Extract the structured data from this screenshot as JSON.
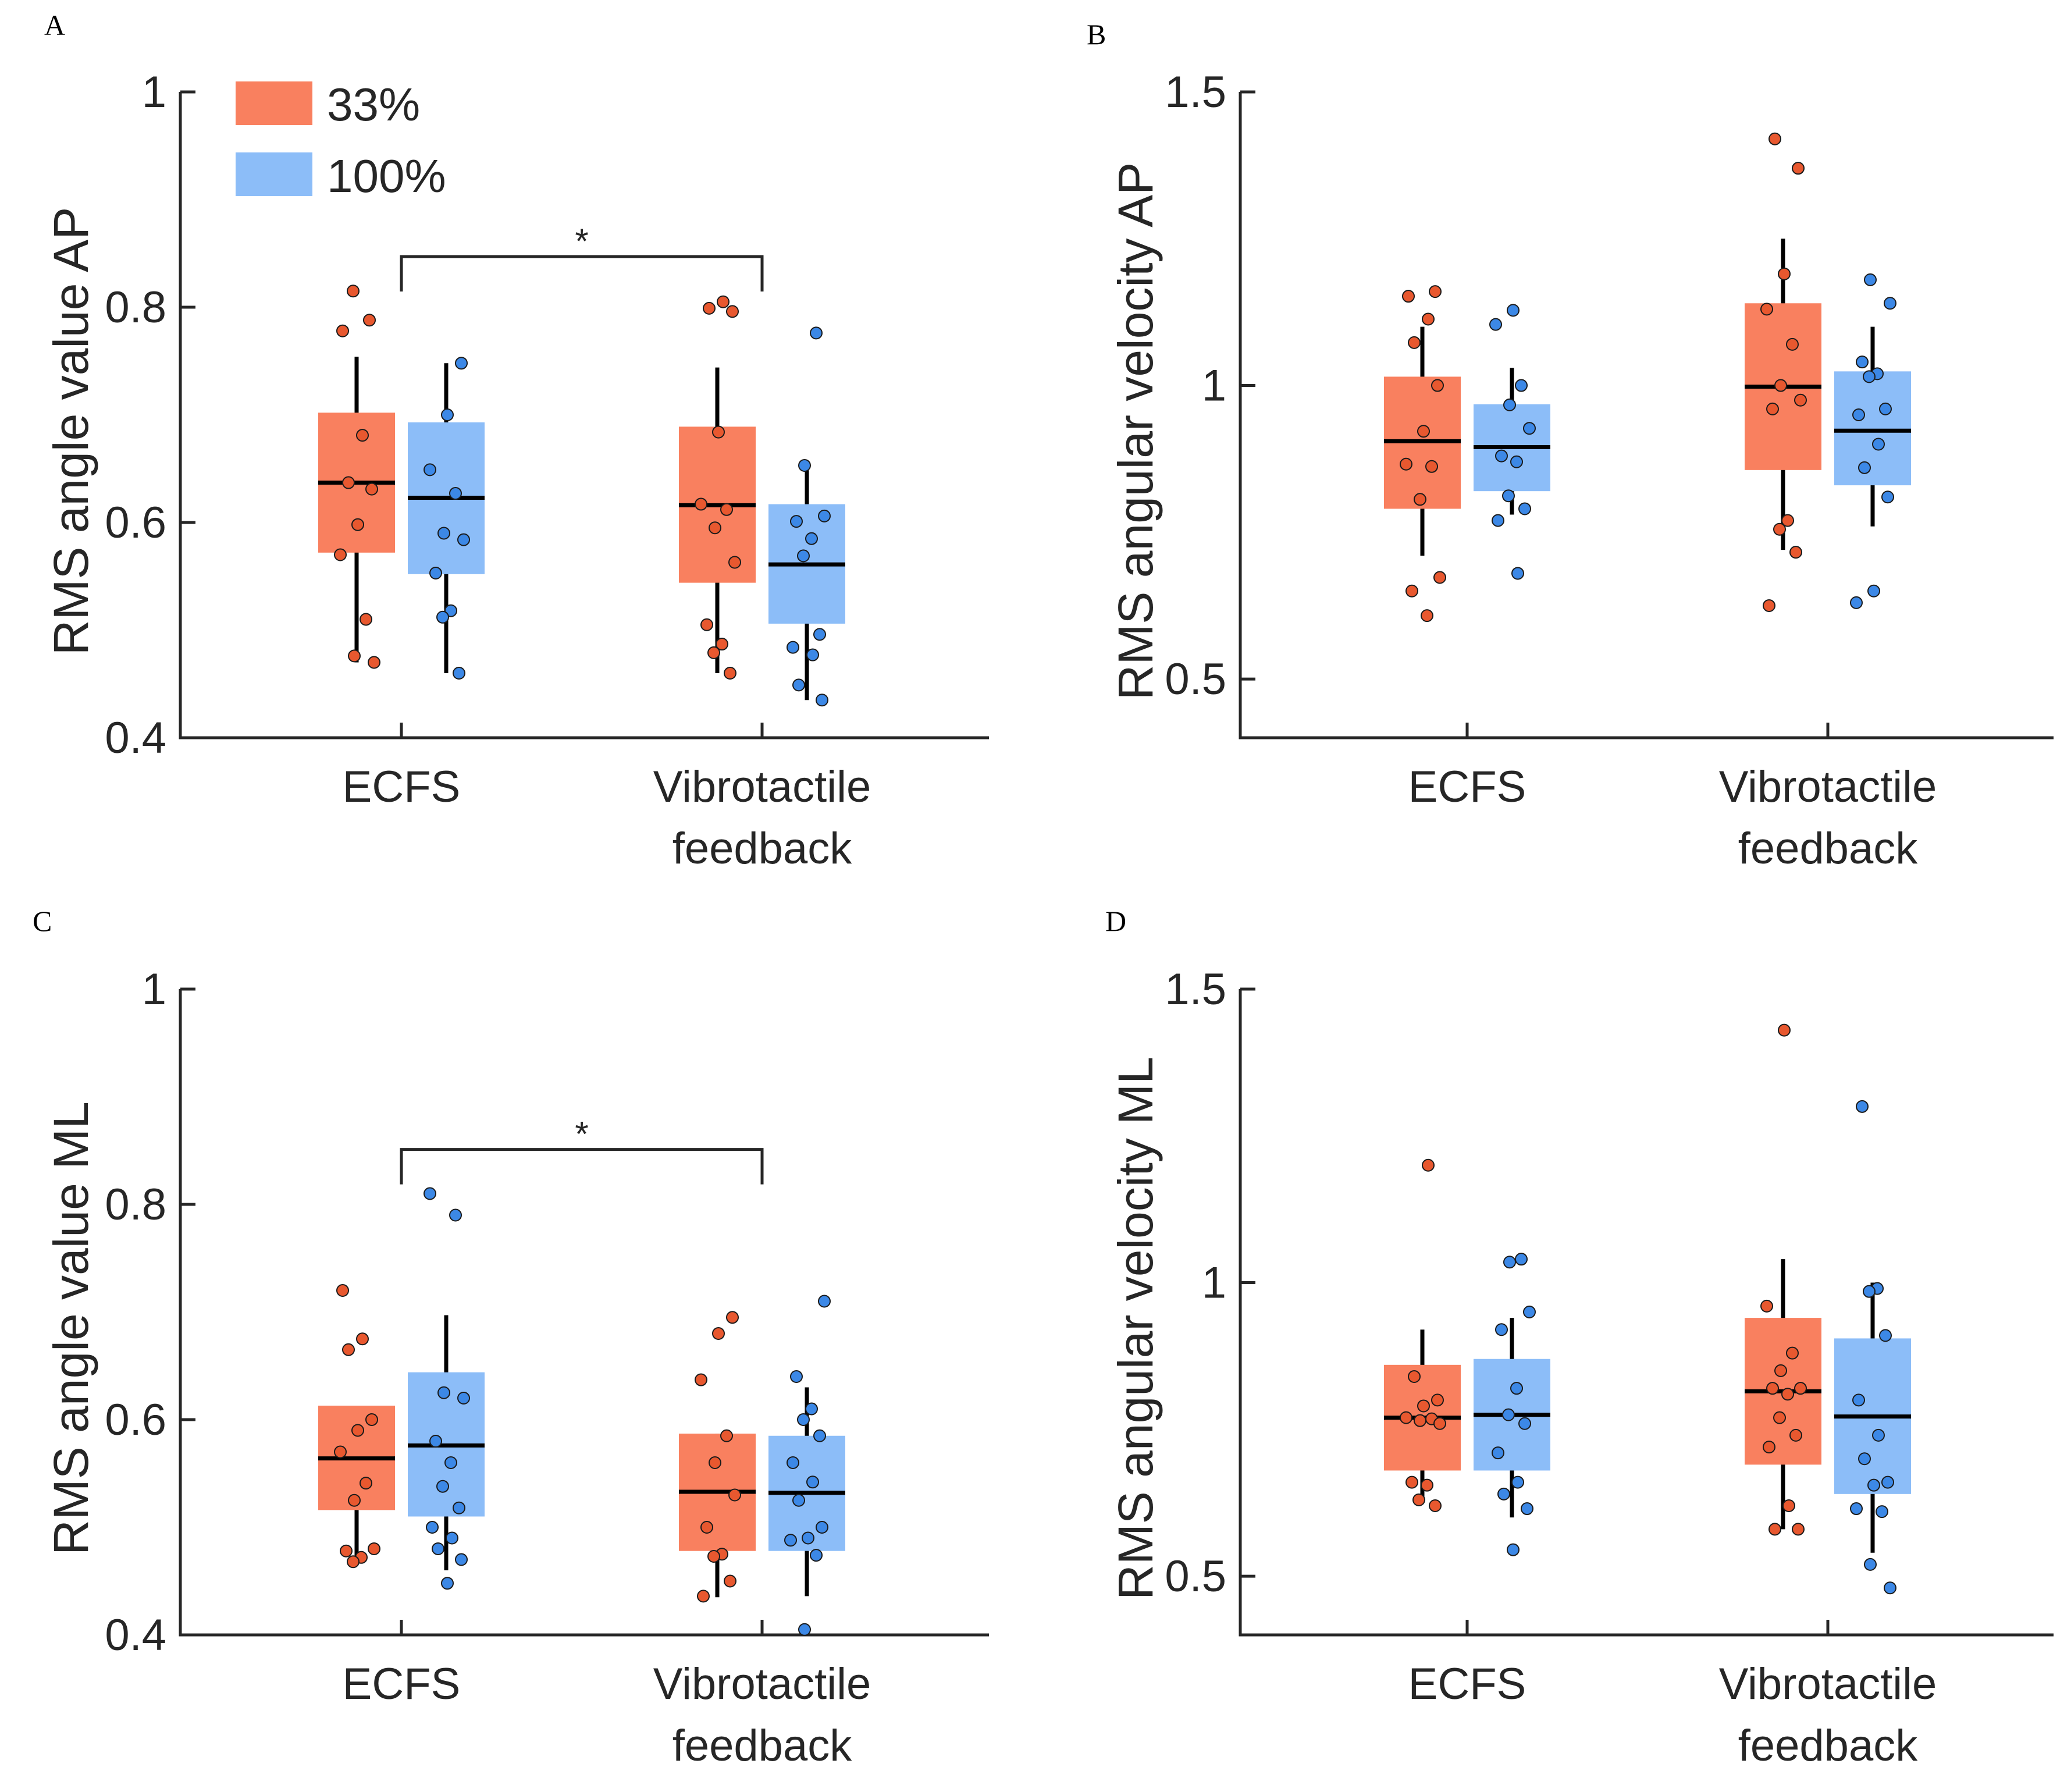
{
  "legend": {
    "items": [
      {
        "label": "33%",
        "color": "#F9805F"
      },
      {
        "label": "100%",
        "color": "#8CBDF8"
      }
    ]
  },
  "colors": {
    "group1_box": "#F9805F",
    "group2_box": "#8CBDF8",
    "group1_dot": "#E8582F",
    "group2_dot": "#3C88E6",
    "axis": "#262626",
    "whisker": "#000000"
  },
  "chart_data": [
    {
      "panel": "A",
      "type": "box",
      "ylabel": "RMS angle value AP",
      "ylim": [
        0.4,
        1.0
      ],
      "yticks": [
        "0.4",
        "0.6",
        "0.8",
        "1"
      ],
      "ytick_values": [
        0.4,
        0.6,
        0.8,
        1.0
      ],
      "categories": [
        "ECFS",
        "Vibrotactile feedback"
      ],
      "category_lines": [
        [
          "ECFS"
        ],
        [
          "Vibrotactile",
          "feedback"
        ]
      ],
      "series": [
        {
          "name": "33%",
          "boxes": [
            {
              "q1": 0.572,
              "median": 0.637,
              "q3": 0.702,
              "whisker_low": 0.47,
              "whisker_high": 0.754,
              "points": [
                0.815,
                0.788,
                0.778,
                0.681,
                0.637,
                0.631,
                0.598,
                0.57,
                0.51,
                0.476,
                0.47
              ]
            },
            {
              "q1": 0.544,
              "median": 0.616,
              "q3": 0.689,
              "whisker_low": 0.46,
              "whisker_high": 0.744,
              "points": [
                0.805,
                0.799,
                0.796,
                0.684,
                0.617,
                0.612,
                0.595,
                0.563,
                0.505,
                0.487,
                0.479,
                0.46
              ]
            }
          ]
        },
        {
          "name": "100%",
          "boxes": [
            {
              "q1": 0.552,
              "median": 0.623,
              "q3": 0.693,
              "whisker_low": 0.46,
              "whisker_high": 0.748,
              "points": [
                0.748,
                0.7,
                0.649,
                0.627,
                0.59,
                0.584,
                0.553,
                0.518,
                0.512,
                0.46
              ]
            },
            {
              "q1": 0.506,
              "median": 0.561,
              "q3": 0.617,
              "whisker_low": 0.435,
              "whisker_high": 0.655,
              "points": [
                0.776,
                0.653,
                0.606,
                0.601,
                0.585,
                0.569,
                0.496,
                0.484,
                0.477,
                0.449,
                0.435
              ]
            }
          ]
        }
      ],
      "significance": [
        {
          "between": [
            "ECFS",
            "Vibrotactile feedback"
          ],
          "label": "*",
          "y": 0.847
        }
      ]
    },
    {
      "panel": "B",
      "type": "box",
      "ylabel": "RMS angular velocity AP",
      "ylim": [
        0.4,
        1.5
      ],
      "yticks": [
        "0.5",
        "1",
        "1.5"
      ],
      "ytick_values": [
        0.5,
        1.0,
        1.5
      ],
      "categories": [
        "ECFS",
        "Vibrotactile feedback"
      ],
      "category_lines": [
        [
          "ECFS"
        ],
        [
          "Vibrotactile",
          "feedback"
        ]
      ],
      "series": [
        {
          "name": "33%",
          "boxes": [
            {
              "q1": 0.79,
              "median": 0.905,
              "q3": 1.015,
              "whisker_low": 0.71,
              "whisker_high": 1.1,
              "points": [
                1.16,
                1.152,
                1.113,
                1.073,
                1.0,
                0.922,
                0.866,
                0.862,
                0.806,
                0.673,
                0.65,
                0.608
              ]
            },
            {
              "q1": 0.856,
              "median": 0.998,
              "q3": 1.14,
              "whisker_low": 0.72,
              "whisker_high": 1.25,
              "points": [
                1.42,
                1.37,
                1.19,
                1.13,
                1.07,
                1.0,
                0.975,
                0.96,
                0.77,
                0.755,
                0.716,
                0.625
              ]
            }
          ]
        },
        {
          "name": "100%",
          "boxes": [
            {
              "q1": 0.82,
              "median": 0.895,
              "q3": 0.968,
              "whisker_low": 0.78,
              "whisker_high": 1.03,
              "points": [
                1.128,
                1.104,
                1.0,
                0.967,
                0.927,
                0.88,
                0.87,
                0.812,
                0.79,
                0.77,
                0.68
              ]
            },
            {
              "q1": 0.83,
              "median": 0.923,
              "q3": 1.024,
              "whisker_low": 0.76,
              "whisker_high": 1.1,
              "points": [
                1.18,
                1.14,
                1.04,
                1.02,
                1.015,
                0.96,
                0.95,
                0.9,
                0.86,
                0.81,
                0.65,
                0.63
              ]
            }
          ]
        }
      ],
      "significance": []
    },
    {
      "panel": "C",
      "type": "box",
      "ylabel": "RMS angle value ML",
      "ylim": [
        0.4,
        1.0
      ],
      "yticks": [
        "0.4",
        "0.6",
        "0.8",
        "1"
      ],
      "ytick_values": [
        0.4,
        0.6,
        0.8,
        1.0
      ],
      "categories": [
        "ECFS",
        "Vibrotactile feedback"
      ],
      "category_lines": [
        [
          "ECFS"
        ],
        [
          "Vibrotactile",
          "feedback"
        ]
      ],
      "series": [
        {
          "name": "33%",
          "boxes": [
            {
              "q1": 0.516,
              "median": 0.564,
              "q3": 0.613,
              "whisker_low": 0.47,
              "whisker_high": 0.613,
              "points": [
                0.72,
                0.675,
                0.665,
                0.6,
                0.59,
                0.57,
                0.541,
                0.525,
                0.48,
                0.478,
                0.472,
                0.468
              ]
            },
            {
              "q1": 0.478,
              "median": 0.533,
              "q3": 0.587,
              "whisker_low": 0.435,
              "whisker_high": 0.587,
              "points": [
                0.695,
                0.68,
                0.637,
                0.585,
                0.56,
                0.53,
                0.5,
                0.475,
                0.473,
                0.45,
                0.436
              ]
            }
          ]
        },
        {
          "name": "100%",
          "boxes": [
            {
              "q1": 0.51,
              "median": 0.576,
              "q3": 0.644,
              "whisker_low": 0.46,
              "whisker_high": 0.697,
              "points": [
                0.81,
                0.79,
                0.625,
                0.62,
                0.58,
                0.56,
                0.538,
                0.518,
                0.5,
                0.49,
                0.48,
                0.47,
                0.448
              ]
            },
            {
              "q1": 0.478,
              "median": 0.532,
              "q3": 0.585,
              "whisker_low": 0.436,
              "whisker_high": 0.63,
              "points": [
                0.71,
                0.64,
                0.61,
                0.6,
                0.585,
                0.56,
                0.542,
                0.525,
                0.5,
                0.49,
                0.488,
                0.474,
                0.405
              ]
            }
          ]
        }
      ],
      "significance": [
        {
          "between": [
            "ECFS",
            "Vibrotactile feedback"
          ],
          "label": "*",
          "y": 0.851
        }
      ]
    },
    {
      "panel": "D",
      "type": "box",
      "ylabel": "RMS angular velocity ML",
      "ylim": [
        0.4,
        1.5
      ],
      "yticks": [
        "0.5",
        "1",
        "1.5"
      ],
      "ytick_values": [
        0.5,
        1.0,
        1.5
      ],
      "categories": [
        "ECFS",
        "Vibrotactile feedback"
      ],
      "category_lines": [
        [
          "ECFS"
        ],
        [
          "Vibrotactile",
          "feedback"
        ]
      ],
      "series": [
        {
          "name": "33%",
          "boxes": [
            {
              "q1": 0.68,
              "median": 0.77,
              "q3": 0.86,
              "whisker_low": 0.63,
              "whisker_high": 0.92,
              "points": [
                1.2,
                0.84,
                0.8,
                0.79,
                0.77,
                0.768,
                0.765,
                0.76,
                0.66,
                0.655,
                0.63,
                0.62
              ]
            },
            {
              "q1": 0.69,
              "median": 0.815,
              "q3": 0.94,
              "whisker_low": 0.58,
              "whisker_high": 1.04,
              "points": [
                1.43,
                0.96,
                0.88,
                0.85,
                0.82,
                0.82,
                0.81,
                0.77,
                0.74,
                0.72,
                0.62,
                0.58,
                0.58
              ]
            }
          ]
        },
        {
          "name": "100%",
          "boxes": [
            {
              "q1": 0.68,
              "median": 0.775,
              "q3": 0.87,
              "whisker_low": 0.6,
              "whisker_high": 0.94,
              "points": [
                1.04,
                1.035,
                0.95,
                0.92,
                0.82,
                0.775,
                0.76,
                0.71,
                0.66,
                0.64,
                0.615,
                0.545
              ]
            },
            {
              "q1": 0.64,
              "median": 0.772,
              "q3": 0.905,
              "whisker_low": 0.54,
              "whisker_high": 1.0,
              "points": [
                1.3,
                0.99,
                0.985,
                0.91,
                0.8,
                0.74,
                0.7,
                0.66,
                0.655,
                0.615,
                0.61,
                0.52,
                0.48
              ]
            }
          ]
        }
      ],
      "significance": []
    }
  ]
}
